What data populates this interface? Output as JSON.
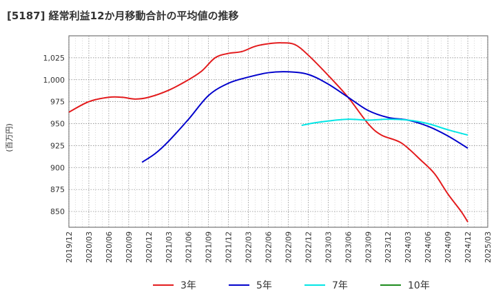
{
  "title": "[5187]  経常利益12か月移動合計の平均値の推移",
  "chart_data": {
    "type": "line",
    "ylabel": "(百万円)",
    "ylim": [
      832,
      1050
    ],
    "yticks": [
      850,
      875,
      900,
      925,
      950,
      975,
      1000,
      1025
    ],
    "ytick_labels": [
      "850",
      "875",
      "900",
      "925",
      "950",
      "975",
      "1,000",
      "1,025"
    ],
    "xticks": [
      "2019/12",
      "2020/03",
      "2020/06",
      "2020/09",
      "2020/12",
      "2021/03",
      "2021/06",
      "2021/09",
      "2021/12",
      "2022/03",
      "2022/06",
      "2022/09",
      "2022/12",
      "2023/03",
      "2023/06",
      "2023/09",
      "2023/12",
      "2024/03",
      "2024/06",
      "2024/09",
      "2024/12",
      "2025/03"
    ],
    "grid": true,
    "series": [
      {
        "name": "3年",
        "color": "#e31a1c",
        "points": [
          [
            "2019/12",
            963
          ],
          [
            "2020/03",
            975
          ],
          [
            "2020/06",
            980
          ],
          [
            "2020/08",
            980
          ],
          [
            "2020/10",
            978
          ],
          [
            "2020/12",
            980
          ],
          [
            "2021/03",
            988
          ],
          [
            "2021/06",
            1000
          ],
          [
            "2021/08",
            1010
          ],
          [
            "2021/10",
            1025
          ],
          [
            "2021/12",
            1030
          ],
          [
            "2022/02",
            1032
          ],
          [
            "2022/04",
            1038
          ],
          [
            "2022/06",
            1041
          ],
          [
            "2022/08",
            1042
          ],
          [
            "2022/10",
            1040
          ],
          [
            "2022/12",
            1028
          ],
          [
            "2023/03",
            1005
          ],
          [
            "2023/06",
            980
          ],
          [
            "2023/09",
            950
          ],
          [
            "2023/11",
            937
          ],
          [
            "2024/02",
            928
          ],
          [
            "2024/05",
            908
          ],
          [
            "2024/07",
            893
          ],
          [
            "2024/09",
            870
          ],
          [
            "2024/11",
            850
          ],
          [
            "2024/12",
            838
          ]
        ]
      },
      {
        "name": "5年",
        "color": "#0000cc",
        "points": [
          [
            "2020/11",
            906
          ],
          [
            "2021/01",
            916
          ],
          [
            "2021/03",
            930
          ],
          [
            "2021/06",
            955
          ],
          [
            "2021/09",
            982
          ],
          [
            "2021/12",
            996
          ],
          [
            "2022/03",
            1003
          ],
          [
            "2022/06",
            1008
          ],
          [
            "2022/09",
            1009
          ],
          [
            "2022/12",
            1006
          ],
          [
            "2023/03",
            995
          ],
          [
            "2023/06",
            980
          ],
          [
            "2023/09",
            965
          ],
          [
            "2023/12",
            957
          ],
          [
            "2024/03",
            954
          ],
          [
            "2024/06",
            947
          ],
          [
            "2024/09",
            936
          ],
          [
            "2024/12",
            922
          ]
        ]
      },
      {
        "name": "7年",
        "color": "#00e5e5",
        "points": [
          [
            "2022/11",
            948
          ],
          [
            "2023/01",
            951
          ],
          [
            "2023/03",
            953
          ],
          [
            "2023/06",
            955
          ],
          [
            "2023/09",
            954
          ],
          [
            "2023/12",
            955
          ],
          [
            "2024/03",
            954
          ],
          [
            "2024/06",
            950
          ],
          [
            "2024/09",
            943
          ],
          [
            "2024/12",
            937
          ]
        ]
      },
      {
        "name": "10年",
        "color": "#1a8a1a",
        "points": []
      }
    ]
  }
}
